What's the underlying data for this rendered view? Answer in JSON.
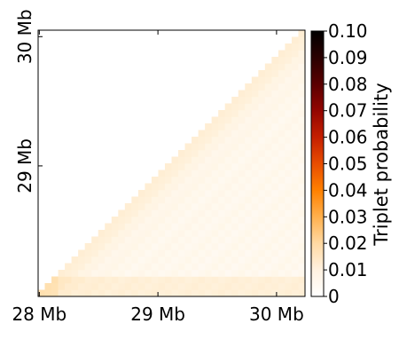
{
  "chart_data": {
    "type": "heatmap",
    "title": "",
    "xlabel": "",
    "ylabel": "",
    "x_ticks": [
      {
        "value": 28,
        "label": "28 Mb"
      },
      {
        "value": 29,
        "label": "29 Mb"
      },
      {
        "value": 30,
        "label": "30 Mb"
      }
    ],
    "y_ticks": [
      {
        "value": 29,
        "label": "29 Mb"
      },
      {
        "value": 30,
        "label": "30 Mb"
      }
    ],
    "xlim": [
      27.99,
      30.24
    ],
    "ylim": [
      27.99,
      30.05
    ],
    "colorbar": {
      "label": "Triplet probability",
      "vmin": 0,
      "vmax": 0.1,
      "ticks": [
        "0",
        "0.01",
        "0.02",
        "0.03",
        "0.04",
        "0.05",
        "0.06",
        "0.07",
        "0.08",
        "0.09",
        "0.10"
      ],
      "colormap": [
        "#ffffff",
        "#fff1e0",
        "#ffd9a3",
        "#ffb04d",
        "#ff8000",
        "#e84d00",
        "#c41f00",
        "#930500",
        "#5a0000",
        "#2a0000",
        "#000000"
      ]
    },
    "layout": "lower-triangle",
    "values_summary": "near-zero probabilities (about 0.001-0.003), slightly higher near the diagonal and along the lowest rows"
  }
}
